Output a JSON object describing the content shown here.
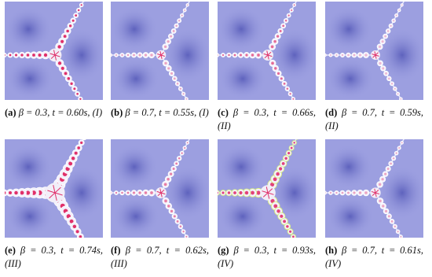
{
  "figure": {
    "panels": [
      {
        "label": "(a)",
        "caption": "β = 0.3, t = 0.60s, (I)"
      },
      {
        "label": "(b)",
        "caption": "β = 0.7, t = 0.55s, (I)"
      },
      {
        "label": "(c)",
        "caption": "β = 0.3, t = 0.66s, (II)"
      },
      {
        "label": "(d)",
        "caption": "β = 0.7, t = 0.59s, (II)"
      },
      {
        "label": "(e)",
        "caption": "β = 0.3, t = 0.74s, (III)"
      },
      {
        "label": "(f)",
        "caption": "β = 0.7, t = 0.62s, (III)"
      },
      {
        "label": "(g)",
        "caption": "β = 0.3, t = 0.93s, (IV)"
      },
      {
        "label": "(h)",
        "caption": "β = 0.7, t = 0.61s, (IV)"
      }
    ]
  }
}
